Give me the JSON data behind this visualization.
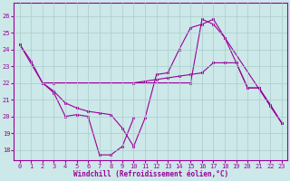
{
  "xlabel": "Windchill (Refroidissement éolien,°C)",
  "background_color": "#cce8e8",
  "line_color": "#990099",
  "grid_color": "#aacccc",
  "ylim": [
    17.4,
    26.8
  ],
  "xlim": [
    -0.5,
    23.5
  ],
  "xticks": [
    0,
    1,
    2,
    3,
    4,
    5,
    6,
    7,
    8,
    9,
    10,
    11,
    12,
    13,
    14,
    15,
    16,
    17,
    18,
    19,
    20,
    21,
    22,
    23
  ],
  "yticks": [
    18,
    19,
    20,
    21,
    22,
    23,
    24,
    25,
    26
  ],
  "series": [
    {
      "x": [
        0,
        2,
        3,
        10,
        11,
        12,
        13,
        14,
        15,
        16,
        17,
        18,
        19,
        20,
        21,
        22,
        23
      ],
      "y": [
        24.3,
        22.0,
        22.0,
        22.0,
        22.1,
        22.2,
        22.3,
        22.4,
        22.5,
        22.6,
        23.2,
        23.2,
        23.2,
        21.7,
        21.7,
        20.7,
        19.6
      ]
    },
    {
      "x": [
        0,
        1,
        2,
        3,
        4,
        5,
        6,
        7,
        8,
        9,
        10
      ],
      "y": [
        24.3,
        23.3,
        22.0,
        21.4,
        20.0,
        20.1,
        20.0,
        17.7,
        17.7,
        18.2,
        19.9
      ]
    },
    {
      "x": [
        2,
        3,
        4,
        5,
        6,
        7,
        8,
        9,
        10,
        11,
        12,
        13,
        14,
        15,
        16,
        17,
        18,
        19,
        20,
        21,
        22,
        23
      ],
      "y": [
        22.0,
        21.5,
        20.8,
        20.5,
        20.3,
        20.2,
        20.1,
        19.3,
        18.2,
        19.9,
        22.5,
        22.6,
        24.0,
        25.3,
        25.5,
        25.8,
        24.7,
        23.2,
        21.7,
        21.7,
        20.6,
        19.6
      ]
    },
    {
      "x": [
        2,
        15,
        16,
        17,
        18,
        23
      ],
      "y": [
        22.0,
        22.0,
        25.8,
        25.5,
        24.7,
        19.6
      ]
    }
  ]
}
